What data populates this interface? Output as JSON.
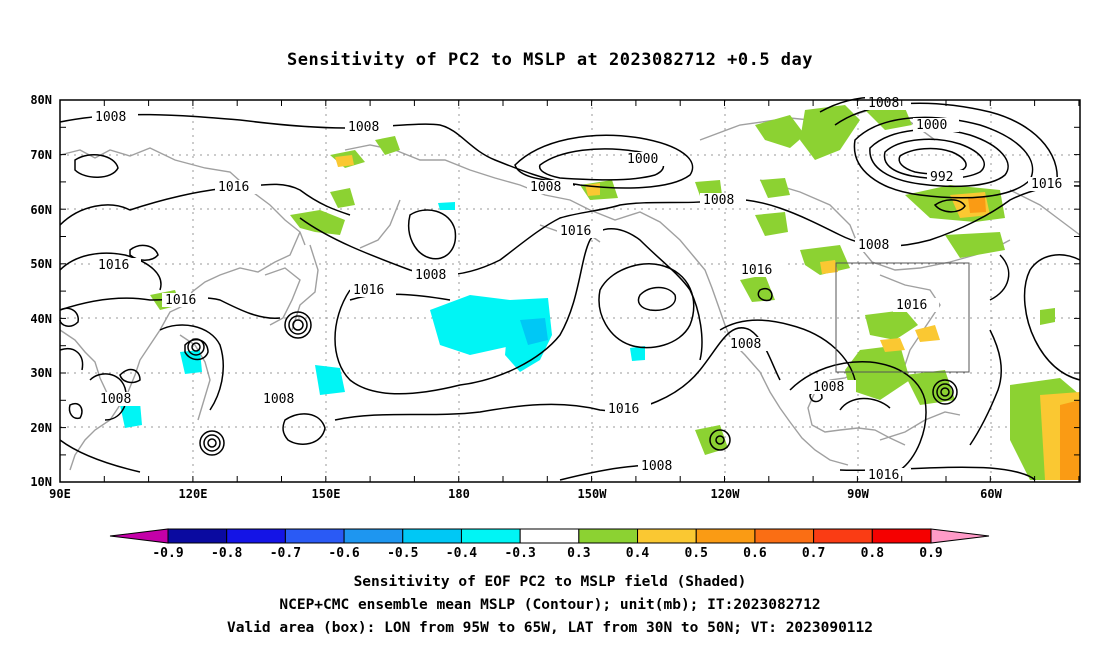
{
  "title": "Sensitivity of PC2 to MSLP at 2023082712 +0.5 day",
  "map": {
    "lat_labels": [
      "80N",
      "70N",
      "60N",
      "50N",
      "40N",
      "30N",
      "20N",
      "10N"
    ],
    "lon_labels": [
      "90E",
      "120E",
      "150E",
      "180",
      "150W",
      "120W",
      "90W",
      "60W"
    ],
    "box_note": "Valid area box 95W-65W, 30N-50N"
  },
  "contour_labels": {
    "l1008a": "1008",
    "l1008b": "1008",
    "l1008c": "1008",
    "l1008d": "1008",
    "l1008e": "1008",
    "l1008f": "1008",
    "l1008g": "1008",
    "l1008h": "1008",
    "l1008i": "1008",
    "l1008j": "1008",
    "l1008k": "1008",
    "l1008l": "1008",
    "l1016a": "1016",
    "l1016b": "1016",
    "l1016c": "1016",
    "l1016d": "1016",
    "l1016e": "1016",
    "l1016f": "1016",
    "l1016g": "1016",
    "l1016h": "1016",
    "l1016i": "1016",
    "l1016j": "1016",
    "l1000a": "1000",
    "l1000b": "1000",
    "l992": "992"
  },
  "colorbar": {
    "colors": [
      "#c400a8",
      "#0a0aa0",
      "#1414e6",
      "#2a5af5",
      "#1e96f0",
      "#00c8f5",
      "#00f5f5",
      "#ffffff",
      "#8cd232",
      "#fac832",
      "#fa9b14",
      "#fa6e14",
      "#fa3c14",
      "#f50000",
      "#ff9bc8"
    ],
    "labels": [
      "-0.9",
      "-0.8",
      "-0.7",
      "-0.6",
      "-0.5",
      "-0.4",
      "-0.3",
      "0.3",
      "0.4",
      "0.5",
      "0.6",
      "0.7",
      "0.8",
      "0.9"
    ]
  },
  "captions": {
    "line1": "Sensitivity of EOF PC2 to MSLP field (Shaded)",
    "line2": "NCEP+CMC ensemble mean MSLP (Contour); unit(mb); IT:2023082712",
    "line3": "Valid area (box): LON from 95W to 65W, LAT from 30N to 50N; VT: 2023090112"
  }
}
